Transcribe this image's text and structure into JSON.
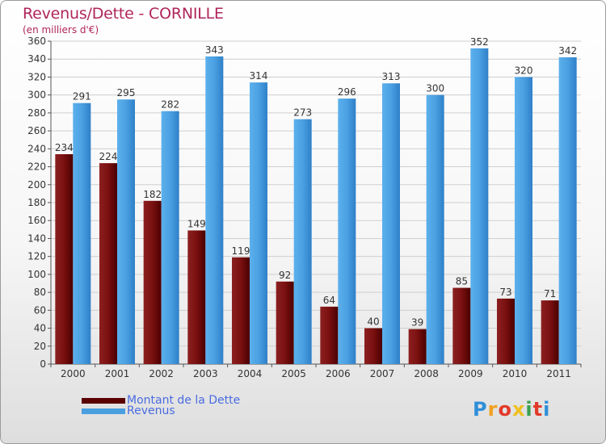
{
  "header": {
    "title": "Revenus/Dette - CORNILLE",
    "subtitle": "(en milliers d'€)"
  },
  "chart_data": {
    "type": "bar",
    "title": "Revenus/Dette - CORNILLE",
    "subtitle": "(en milliers d'€)",
    "categories": [
      "2000",
      "2001",
      "2002",
      "2003",
      "2004",
      "2005",
      "2006",
      "2007",
      "2008",
      "2009",
      "2010",
      "2011"
    ],
    "series": [
      {
        "name": "Montant de la Dette",
        "color": "#7a1010",
        "values": [
          234,
          224,
          182,
          149,
          119,
          92,
          64,
          40,
          39,
          85,
          73,
          71
        ]
      },
      {
        "name": "Revenus",
        "color": "#4a9fe0",
        "values": [
          291,
          295,
          282,
          343,
          314,
          273,
          296,
          313,
          300,
          352,
          320,
          342
        ]
      }
    ],
    "ylim": [
      0,
      360
    ],
    "yticks": [
      0,
      20,
      40,
      60,
      80,
      100,
      120,
      140,
      160,
      180,
      200,
      220,
      240,
      260,
      280,
      300,
      320,
      340,
      360
    ],
    "grid": true,
    "legend_position": "bottom-left"
  },
  "legend": {
    "items": [
      {
        "label": "Montant de la Dette",
        "color": "#5a0000"
      },
      {
        "label": "Revenus",
        "color": "#4a9fe0"
      }
    ]
  },
  "logo": {
    "text": "Proxiti",
    "letters": [
      {
        "ch": "P",
        "color": "#2f8fd8"
      },
      {
        "ch": "r",
        "color": "#f0a020"
      },
      {
        "ch": "o",
        "color": "#e23a2a"
      },
      {
        "ch": "x",
        "color": "#f0c020"
      },
      {
        "ch": "i",
        "color": "#3aa050"
      },
      {
        "ch": "t",
        "color": "#e23a2a"
      },
      {
        "ch": "i",
        "color": "#2f8fd8"
      }
    ]
  }
}
